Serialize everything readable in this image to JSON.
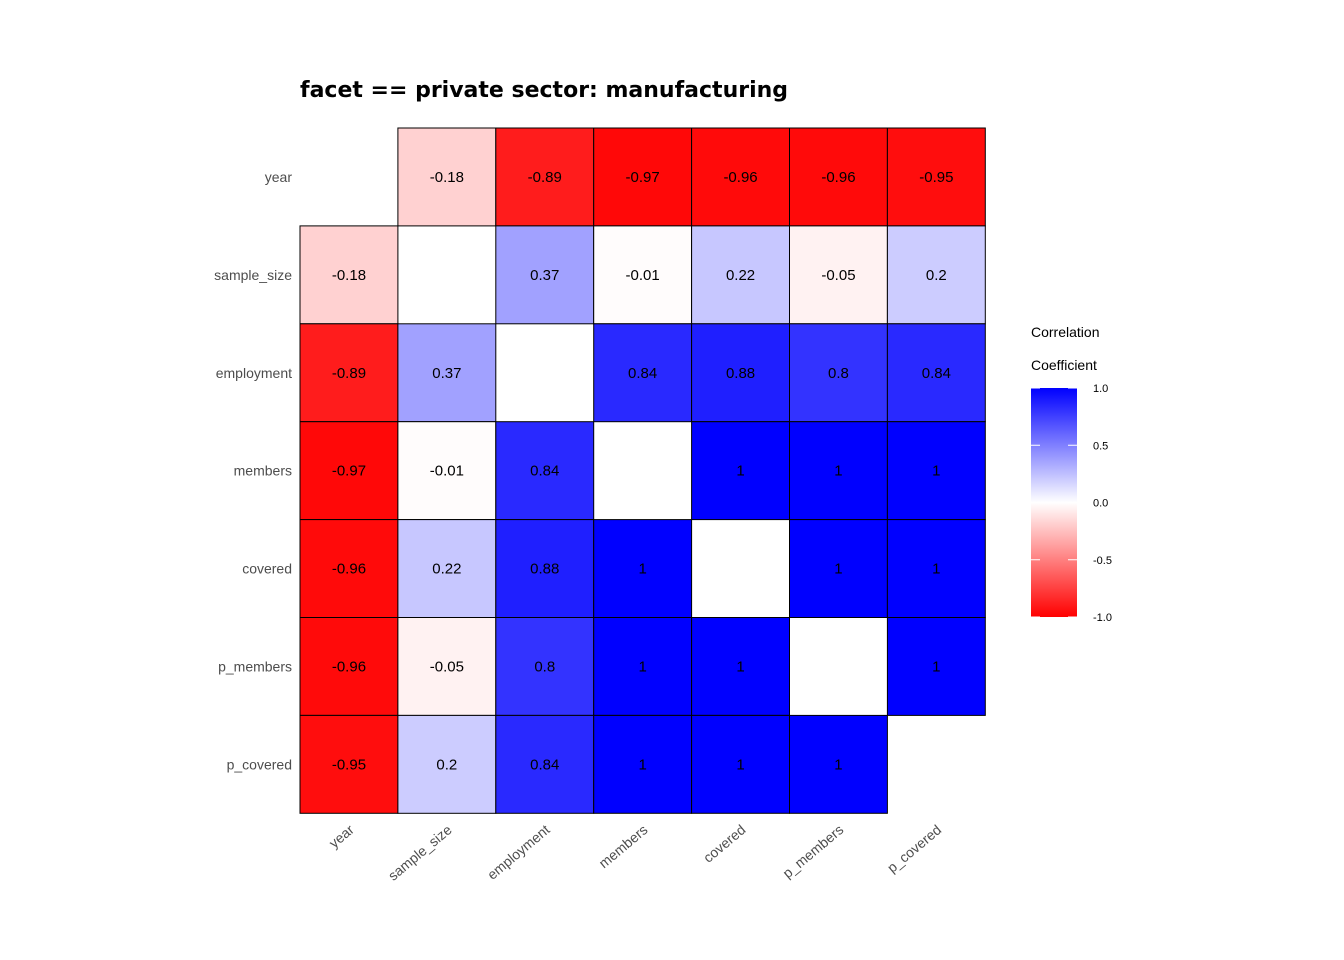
{
  "chart_data": {
    "type": "heatmap",
    "title": "facet == private sector: manufacturing",
    "xlabel": "",
    "ylabel": "",
    "variables": [
      "year",
      "sample_size",
      "employment",
      "members",
      "covered",
      "p_members",
      "p_covered"
    ],
    "matrix": [
      [
        null,
        -0.18,
        -0.89,
        -0.97,
        -0.96,
        -0.96,
        -0.95
      ],
      [
        -0.18,
        null,
        0.37,
        -0.01,
        0.22,
        -0.05,
        0.2
      ],
      [
        -0.89,
        0.37,
        null,
        0.84,
        0.88,
        0.8,
        0.84
      ],
      [
        -0.97,
        -0.01,
        0.84,
        null,
        1,
        1,
        1
      ],
      [
        -0.96,
        0.22,
        0.88,
        1,
        null,
        1,
        1
      ],
      [
        -0.96,
        -0.05,
        0.8,
        1,
        1,
        null,
        1
      ],
      [
        -0.95,
        0.2,
        0.84,
        1,
        1,
        1,
        null
      ]
    ],
    "color_scale": {
      "low": "#ff0000",
      "mid": "#ffffff",
      "high": "#0000ff",
      "limits": [
        -1,
        1
      ]
    },
    "legend": {
      "title_lines": [
        "Correlation",
        "Coefficient"
      ],
      "ticks": [
        "1.0",
        "0.5",
        "0.0",
        "-0.5",
        "-1.0"
      ],
      "tick_values": [
        1,
        0.5,
        0,
        -0.5,
        -1
      ],
      "position": "right"
    },
    "grid": false
  }
}
